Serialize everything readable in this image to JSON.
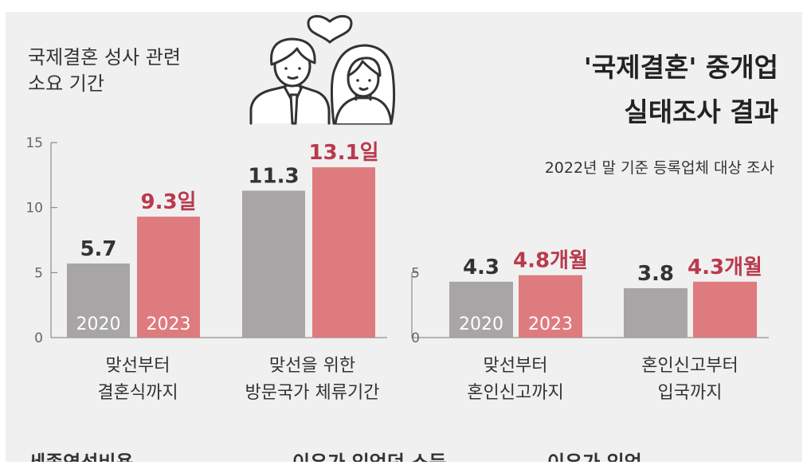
{
  "header": {
    "left_title_line1": "국제결혼 성사 관련",
    "left_title_line2": "소요 기간",
    "right_title_line1": "'국제결혼' 중개업",
    "right_title_line2": "실태조사 결과",
    "subtitle": "2022년 말 기준 등록업체 대상 조사"
  },
  "colors": {
    "background": "#f1f0f0",
    "bar_2020": "#a7a5a6",
    "bar_2023": "#de7b7e",
    "value_2020_text": "#333333",
    "value_2023_text": "#b93a4d",
    "axis": "#777777"
  },
  "icon": "couple-with-heart-icon",
  "footer_partial_text": [
    "세종연성비용",
    "이유가 있었던 소득",
    "이유가 있었"
  ],
  "chart_data": [
    {
      "type": "bar",
      "title": "",
      "categories": [
        [
          "맞선부터",
          "결혼식까지"
        ],
        [
          "맞선을 위한",
          "방문국가 체류기간"
        ]
      ],
      "series": [
        {
          "name": "2020",
          "values": [
            5.7,
            11.3
          ],
          "labels": [
            "5.7",
            "11.3"
          ]
        },
        {
          "name": "2023",
          "values": [
            9.3,
            13.1
          ],
          "labels": [
            "9.3일",
            "13.1일"
          ]
        }
      ],
      "yticks": [
        "0",
        "5",
        "10",
        "15"
      ],
      "ylim": [
        0,
        15
      ],
      "grid": false
    },
    {
      "type": "bar",
      "title": "",
      "categories": [
        [
          "맞선부터",
          "혼인신고까지"
        ],
        [
          "혼인신고부터",
          "입국까지"
        ]
      ],
      "series": [
        {
          "name": "2020",
          "values": [
            4.3,
            3.8
          ],
          "labels": [
            "4.3",
            "3.8"
          ]
        },
        {
          "name": "2023",
          "values": [
            4.8,
            4.3
          ],
          "labels": [
            "4.8개월",
            "4.3개월"
          ]
        }
      ],
      "yticks": [
        "0",
        "5"
      ],
      "ylim": [
        0,
        15
      ],
      "grid": false
    }
  ]
}
